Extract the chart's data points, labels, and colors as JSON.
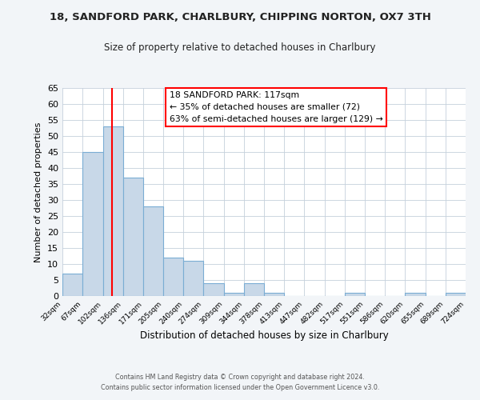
{
  "title": "18, SANDFORD PARK, CHARLBURY, CHIPPING NORTON, OX7 3TH",
  "subtitle": "Size of property relative to detached houses in Charlbury",
  "xlabel": "Distribution of detached houses by size in Charlbury",
  "ylabel": "Number of detached properties",
  "bin_edges": [
    32,
    67,
    102,
    136,
    171,
    205,
    240,
    274,
    309,
    344,
    378,
    413,
    447,
    482,
    517,
    551,
    586,
    620,
    655,
    689,
    724
  ],
  "bin_labels": [
    "32sqm",
    "67sqm",
    "102sqm",
    "136sqm",
    "171sqm",
    "205sqm",
    "240sqm",
    "274sqm",
    "309sqm",
    "344sqm",
    "378sqm",
    "413sqm",
    "447sqm",
    "482sqm",
    "517sqm",
    "551sqm",
    "586sqm",
    "620sqm",
    "655sqm",
    "689sqm",
    "724sqm"
  ],
  "counts": [
    7,
    45,
    53,
    37,
    28,
    12,
    11,
    4,
    1,
    4,
    1,
    0,
    0,
    0,
    1,
    0,
    0,
    1,
    0,
    1
  ],
  "bar_color": "#c8d8e8",
  "bar_edge_color": "#7aadd4",
  "red_line_x": 117,
  "ylim": [
    0,
    65
  ],
  "yticks": [
    0,
    5,
    10,
    15,
    20,
    25,
    30,
    35,
    40,
    45,
    50,
    55,
    60,
    65
  ],
  "annotation_title": "18 SANDFORD PARK: 117sqm",
  "annotation_line1": "← 35% of detached houses are smaller (72)",
  "annotation_line2": "63% of semi-detached houses are larger (129) →",
  "footer1": "Contains HM Land Registry data © Crown copyright and database right 2024.",
  "footer2": "Contains public sector information licensed under the Open Government Licence v3.0.",
  "background_color": "#f2f5f8",
  "plot_bg_color": "#ffffff"
}
